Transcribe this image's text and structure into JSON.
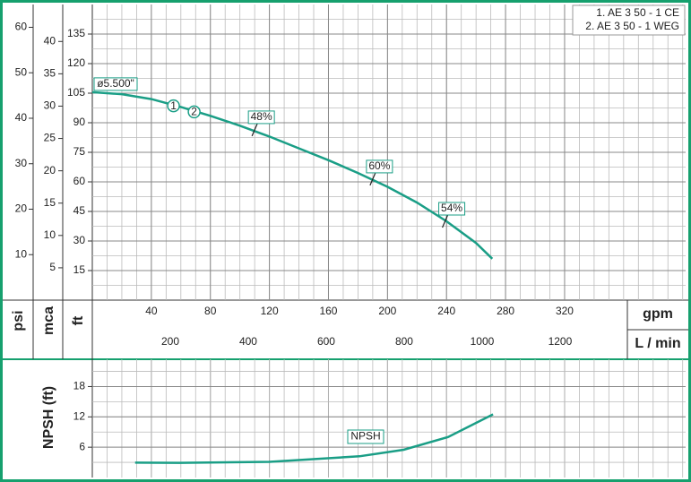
{
  "chart_data": [
    {
      "type": "line",
      "legend": [
        "1. AE 3 50 - 1 CE",
        "2. AE 3 50 - 1 WEG"
      ],
      "xlabel": "gpm",
      "xlim": [
        0,
        402
      ],
      "xticks": [
        40,
        80,
        120,
        160,
        200,
        240,
        280,
        320
      ],
      "x2label": "L / min",
      "x2lim": [
        0,
        1522
      ],
      "x2ticks": [
        200,
        400,
        600,
        800,
        1000,
        1200
      ],
      "ylabel": "ft",
      "ylim": [
        0,
        150
      ],
      "yticks": [
        15,
        30,
        45,
        60,
        75,
        90,
        105,
        120,
        135
      ],
      "y2label": "mca",
      "y2lim": [
        0,
        45.72
      ],
      "y2ticks": [
        5,
        10,
        15,
        20,
        25,
        30,
        35,
        40
      ],
      "y3label": "psi",
      "y3lim": [
        0,
        65.02
      ],
      "y3ticks": [
        10,
        20,
        30,
        40,
        50,
        60
      ],
      "grid": true,
      "series": [
        {
          "name": "ø5.500\"",
          "color": "#1a9e86",
          "x": [
            0,
            20,
            40,
            60,
            80,
            100,
            120,
            140,
            160,
            180,
            200,
            220,
            240,
            260,
            271
          ],
          "values": [
            105.5,
            104.5,
            102,
            98,
            93.5,
            88.5,
            83,
            77,
            71,
            64.5,
            57.5,
            49.5,
            40,
            29,
            21
          ]
        }
      ],
      "markers": [
        {
          "label": "1",
          "x": 55,
          "y": 98.6
        },
        {
          "label": "2",
          "x": 69,
          "y": 95.5
        }
      ],
      "efficiency": [
        {
          "label": "48%",
          "x": 110,
          "y": 86.4
        },
        {
          "label": "60%",
          "x": 190,
          "y": 61.4
        },
        {
          "label": "54%",
          "x": 239,
          "y": 40
        }
      ]
    },
    {
      "type": "line",
      "ylabel": "NPSH (ft)",
      "xlim": [
        0,
        402
      ],
      "ylim": [
        0,
        23.4
      ],
      "yticks": [
        6,
        12,
        18
      ],
      "grid": true,
      "series": [
        {
          "name": "NPSH",
          "color": "#1a9e86",
          "x": [
            29,
            59,
            120,
            181,
            211,
            241,
            271.5
          ],
          "values": [
            2.95,
            2.9,
            3.1,
            4.2,
            5.5,
            8,
            12.5
          ]
        }
      ]
    }
  ]
}
